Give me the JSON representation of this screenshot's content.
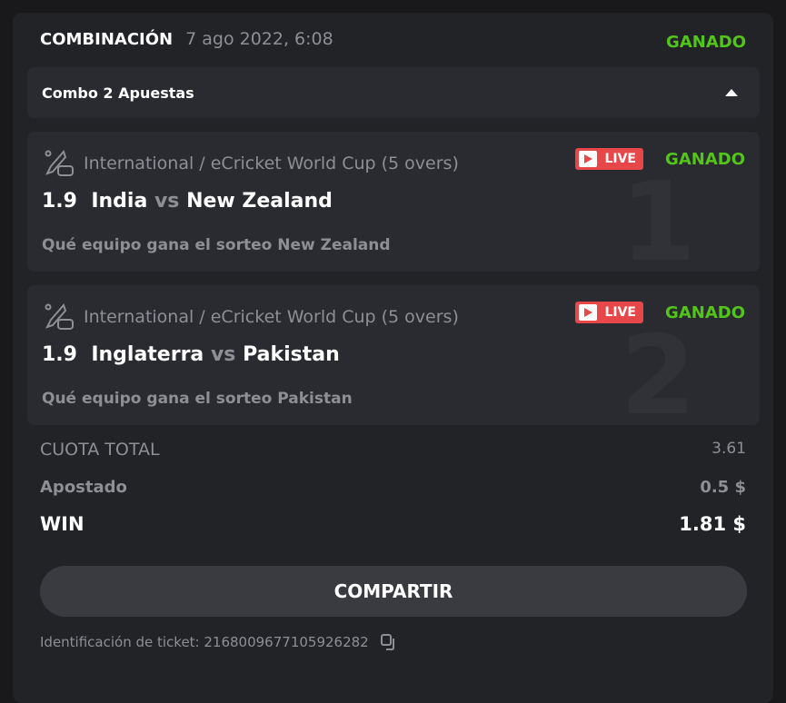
{
  "header": {
    "title": "COMBINACIÓN",
    "date": "7 ago 2022, 6:08",
    "status": "GANADO"
  },
  "combo": {
    "label": "Combo 2 Apuestas"
  },
  "legs": [
    {
      "index": "1",
      "category": "International / eCricket World Cup (5 overs)",
      "live": "LIVE",
      "status": "GANADO",
      "odds": "1.9",
      "home": "India",
      "vs": "vs",
      "away": "New Zealand",
      "selection": "Qué equipo gana el sorteo New Zealand"
    },
    {
      "index": "2",
      "category": "International / eCricket World Cup (5 overs)",
      "live": "LIVE",
      "status": "GANADO",
      "odds": "1.9",
      "home": "Inglaterra",
      "vs": "vs",
      "away": "Pakistan",
      "selection": "Qué equipo gana el sorteo Pakistan"
    }
  ],
  "totals": {
    "odds_label": "CUOTA TOTAL",
    "odds_value": "3.61",
    "stake_label": "Apostado",
    "stake_value": "0.5 $",
    "win_label": "WIN",
    "win_value": "1.81 $"
  },
  "share_label": "COMPARTIR",
  "ticket": {
    "text": "Identificación de ticket: 2168009677105926282"
  },
  "colors": {
    "won": "#52c41a",
    "live": "#e8474a"
  }
}
